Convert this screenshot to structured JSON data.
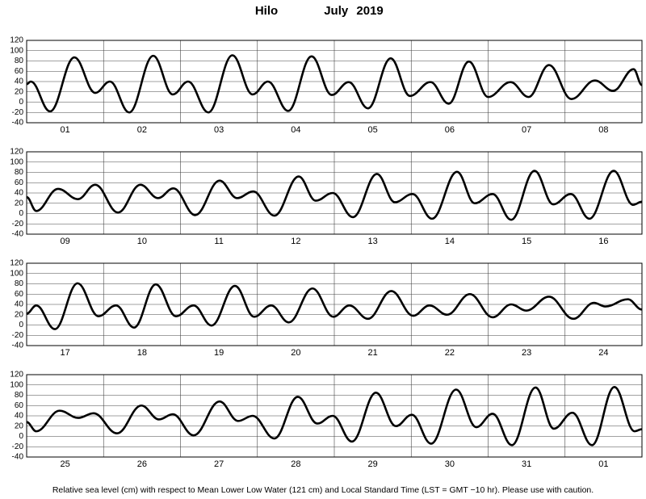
{
  "title": {
    "station": "Hilo",
    "period": "July 2019"
  },
  "note": "Relative sea level (cm) with respect to Mean Lower Low Water (121 cm) and Local Standard Time (LST = GMT −10 hr). Please use with caution.",
  "chart_data": [
    {
      "type": "line",
      "color": "#000000",
      "categories": [
        "01",
        "02",
        "03",
        "04",
        "05",
        "06",
        "07",
        "08"
      ],
      "x": [
        0,
        1.3,
        7.3,
        14.9,
        21.4,
        26,
        32,
        39.5,
        45.6,
        50.4,
        56.7,
        64.2,
        70.5,
        75.3,
        81.6,
        88.9,
        95.2,
        100.5,
        106.5,
        113.6,
        119.6,
        126,
        131.7,
        138,
        144,
        151,
        156.6,
        163,
        170,
        177.3,
        183,
        189.4,
        192
      ],
      "values": [
        35,
        40,
        -18,
        87,
        18,
        40,
        -20,
        90,
        15,
        40,
        -20,
        91,
        15,
        40,
        -17,
        89,
        14,
        39,
        -12,
        85,
        12,
        39,
        -3,
        79,
        10,
        39,
        10,
        72,
        6,
        42,
        22,
        64,
        33
      ],
      "xlim": [
        0,
        192
      ],
      "xticks": [
        24,
        48,
        72,
        96,
        120,
        144,
        168
      ],
      "ylim": [
        -40,
        120
      ],
      "yticks": [
        -40,
        -20,
        0,
        20,
        40,
        60,
        80,
        100,
        120
      ],
      "grid": true
    },
    {
      "type": "line",
      "color": "#000000",
      "categories": [
        "09",
        "10",
        "11",
        "12",
        "13",
        "14",
        "15",
        "16"
      ],
      "x": [
        0,
        3,
        9.8,
        16,
        21.4,
        28.5,
        35.5,
        41,
        45.8,
        52.6,
        60.2,
        65.7,
        70.7,
        77.3,
        84.9,
        90.2,
        95.5,
        101.8,
        109.3,
        114.9,
        120.4,
        126.5,
        134.3,
        139.8,
        145.4,
        151.2,
        158.5,
        164.3,
        169.8,
        175.6,
        183.2,
        189.2,
        192
      ],
      "values": [
        32,
        5,
        48,
        28,
        56,
        2,
        56,
        30,
        49,
        -3,
        64,
        30,
        43,
        -4,
        72,
        25,
        40,
        -7,
        77,
        22,
        38,
        -10,
        81,
        20,
        38,
        -12,
        83,
        18,
        38,
        -10,
        83,
        17,
        23
      ],
      "xlim": [
        0,
        192
      ],
      "xticks": [
        24,
        48,
        72,
        96,
        120,
        144,
        168
      ],
      "ylim": [
        -40,
        120
      ],
      "yticks": [
        -40,
        -20,
        0,
        20,
        40,
        60,
        80,
        100,
        120
      ],
      "grid": true
    },
    {
      "type": "line",
      "color": "#000000",
      "categories": [
        "17",
        "18",
        "19",
        "20",
        "21",
        "22",
        "23",
        "24"
      ],
      "x": [
        0,
        3,
        8.8,
        15.9,
        22.4,
        27.9,
        33.5,
        40.3,
        46.6,
        52.1,
        57.7,
        65,
        71,
        76.3,
        81.8,
        89.2,
        95.7,
        100.7,
        106.5,
        113.8,
        120.6,
        125.7,
        131.2,
        138.3,
        145.4,
        151.2,
        155.9,
        163,
        170.6,
        177,
        180.6,
        187.6,
        192
      ],
      "values": [
        22,
        38,
        -8,
        81,
        17,
        38,
        -5,
        79,
        17,
        38,
        -1,
        76,
        16,
        38,
        5,
        71,
        16,
        38,
        12,
        66,
        18,
        38,
        20,
        60,
        15,
        40,
        28,
        55,
        12,
        43,
        36,
        50,
        30
      ],
      "xlim": [
        0,
        192
      ],
      "xticks": [
        24,
        48,
        72,
        96,
        120,
        144,
        168
      ],
      "ylim": [
        -40,
        120
      ],
      "yticks": [
        -40,
        -20,
        0,
        20,
        40,
        60,
        80,
        100,
        120
      ],
      "grid": true
    },
    {
      "type": "line",
      "color": "#000000",
      "categories": [
        "25",
        "26",
        "27",
        "28",
        "29",
        "30",
        "31",
        "01"
      ],
      "x": [
        0,
        3,
        10.3,
        16.1,
        20.9,
        28.2,
        35.8,
        41.3,
        45.6,
        52.1,
        60.2,
        66,
        70.5,
        77.3,
        84.6,
        90.7,
        95.5,
        101.5,
        109,
        115.2,
        120.2,
        126.2,
        134,
        140.3,
        145.4,
        151.4,
        158.8,
        164.5,
        170.3,
        176.4,
        183.4,
        189.7,
        192
      ],
      "values": [
        28,
        10,
        50,
        36,
        45,
        6,
        60,
        33,
        43,
        2,
        68,
        30,
        40,
        -4,
        77,
        25,
        40,
        -10,
        85,
        20,
        42,
        -14,
        91,
        18,
        44,
        -17,
        95,
        15,
        46,
        -17,
        96,
        10,
        14
      ],
      "xlim": [
        0,
        192
      ],
      "xticks": [
        24,
        48,
        72,
        96,
        120,
        144,
        168
      ],
      "ylim": [
        -40,
        120
      ],
      "yticks": [
        -40,
        -20,
        0,
        20,
        40,
        60,
        80,
        100,
        120
      ],
      "grid": true
    }
  ]
}
